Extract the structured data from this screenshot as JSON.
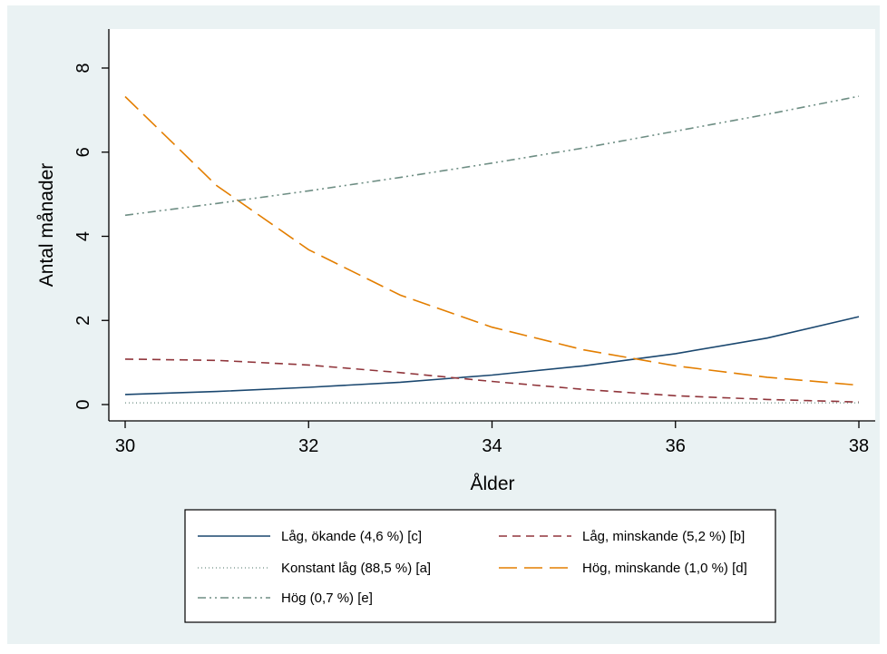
{
  "chart_data": {
    "type": "line",
    "title": "",
    "xlabel": "Ålder",
    "ylabel": "Antal månader",
    "xlim": [
      30,
      38
    ],
    "ylim": [
      -0.3,
      8.9
    ],
    "x_ticks": [
      "30",
      "32",
      "34",
      "36",
      "38"
    ],
    "y_ticks": [
      "0",
      "2",
      "4",
      "6",
      "8"
    ],
    "grid": false,
    "legend_position": "bottom",
    "x": [
      30,
      31,
      32,
      33,
      34,
      35,
      36,
      37,
      38
    ],
    "series": [
      {
        "name": "Låg, ökande (4,6 %) [c]",
        "color": "#1a476f",
        "dash": "solid",
        "values": [
          0.24,
          0.31,
          0.41,
          0.53,
          0.7,
          0.92,
          1.21,
          1.58,
          2.09
        ]
      },
      {
        "name": "Låg, minskande (5,2 %) [b]",
        "color": "#90353b",
        "dash": "dash",
        "values": [
          1.08,
          1.05,
          0.94,
          0.76,
          0.55,
          0.36,
          0.21,
          0.12,
          0.06
        ]
      },
      {
        "name": "Konstant låg (88,5 %) [a]",
        "color": "#6e8e84",
        "dash": "dot",
        "values": [
          0.04,
          0.04,
          0.04,
          0.04,
          0.04,
          0.04,
          0.04,
          0.04,
          0.04
        ]
      },
      {
        "name": "Hög, minskande (1,0 %) [d]",
        "color": "#e37e00",
        "dash": "longdash",
        "values": [
          7.32,
          5.2,
          3.68,
          2.6,
          1.84,
          1.3,
          0.92,
          0.65,
          0.46
        ]
      },
      {
        "name": "Hög (0,7 %) [e]",
        "color": "#6e8e84",
        "dash": "dashdot",
        "values": [
          4.5,
          4.78,
          5.08,
          5.4,
          5.74,
          6.1,
          6.5,
          6.9,
          7.33
        ]
      }
    ]
  }
}
